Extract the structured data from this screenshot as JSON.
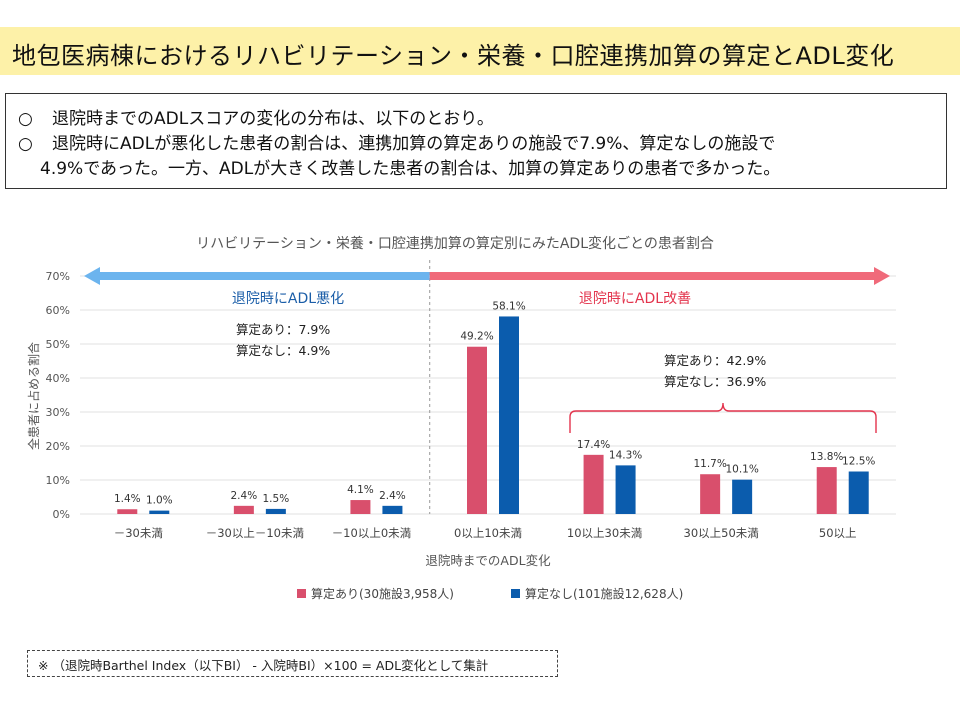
{
  "header": {
    "title": "地包医病棟におけるリハビリテーション・栄養・口腔連携加算の算定とADL変化"
  },
  "summary": {
    "bullet": "○",
    "line1": "退院時までのADLスコアの変化の分布は、以下のとおり。",
    "line2": "退院時にADLが悪化した患者の割合は、連携加算の算定ありの施設で7.9%、算定なしの施設で",
    "line3": "4.9%であった。一方、ADLが大きく改善した患者の割合は、加算の算定ありの患者で多かった。"
  },
  "chart_data": {
    "type": "bar",
    "title": "リハビリテーション・栄養・口腔連携加算の算定別にみたADL変化ごとの患者割合",
    "xlabel": "退院時までのADL変化",
    "ylabel": "全患者に占める割合",
    "ylim": [
      0,
      70
    ],
    "yticks": [
      "0%",
      "10%",
      "20%",
      "30%",
      "40%",
      "50%",
      "60%",
      "70%"
    ],
    "grid": true,
    "legend_position": "bottom",
    "categories": [
      "－30未満",
      "－30以上－10未満",
      "－10以上0未満",
      "0以上10未満",
      "10以上30未満",
      "30以上50未満",
      "50以上"
    ],
    "series": [
      {
        "name": "算定あり(30施設3,958人)",
        "color": "#d94f6c",
        "values": [
          1.4,
          2.4,
          4.1,
          49.2,
          17.4,
          11.7,
          13.8
        ],
        "labels": [
          "1.4%",
          "2.4%",
          "4.1%",
          "49.2%",
          "17.4%",
          "11.7%",
          "13.8%"
        ]
      },
      {
        "name": "算定なし(101施設12,628人)",
        "color": "#0b5cad",
        "values": [
          1.0,
          1.5,
          2.4,
          58.1,
          14.3,
          10.1,
          12.5
        ],
        "labels": [
          "1.0%",
          "1.5%",
          "2.4%",
          "58.1%",
          "14.3%",
          "10.1%",
          "12.5%"
        ]
      }
    ],
    "annotations": {
      "worse_label": "退院時にADL悪化",
      "better_label": "退院時にADL改善",
      "worse_colors": {
        "arrow": "#6cb4ee",
        "text": "#1b5ea8"
      },
      "better_colors": {
        "arrow": "#f06a7a",
        "text": "#e3344d"
      },
      "worse_group": [
        "算定あり：7.9%",
        "算定なし：4.9%"
      ],
      "better_group": [
        "算定あり：42.9%",
        "算定なし：36.9%"
      ]
    }
  },
  "note": {
    "text": "※ （退院時Barthel Index（以下BI） - 入院時BI）×100 = ADL変化として集計"
  }
}
